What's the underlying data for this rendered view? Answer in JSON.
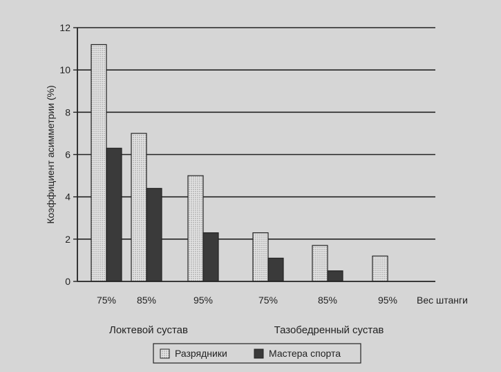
{
  "chart_data": {
    "type": "bar",
    "ylabel": "Коэффициент асимметрии (%)",
    "ylim": [
      0,
      12
    ],
    "yticks": [
      0,
      2,
      4,
      6,
      8,
      10,
      12
    ],
    "grid": "horizontal",
    "categories": [
      "75%",
      "85%",
      "95%",
      "75%",
      "85%",
      "95%"
    ],
    "x_axis_trailing_label": "Вес штанги",
    "groups": [
      {
        "label": "Локтевой сустав",
        "categories": [
          "75%",
          "85%",
          "95%"
        ]
      },
      {
        "label": "Тазобедренный сустав",
        "categories": [
          "75%",
          "85%",
          "95%"
        ]
      }
    ],
    "series": [
      {
        "name": "Разрядники",
        "values": [
          11.2,
          7.0,
          5.0,
          2.3,
          1.7,
          1.2
        ]
      },
      {
        "name": "Мастера спорта",
        "values": [
          6.3,
          4.4,
          2.3,
          1.1,
          0.5,
          0.0
        ]
      }
    ],
    "colors": {
      "Разрядники": "#d8d8d8",
      "Мастера спорта": "#3a3a3a",
      "background": "#d6d6d6",
      "axis": "#222222"
    },
    "legend_position": "bottom-center"
  }
}
